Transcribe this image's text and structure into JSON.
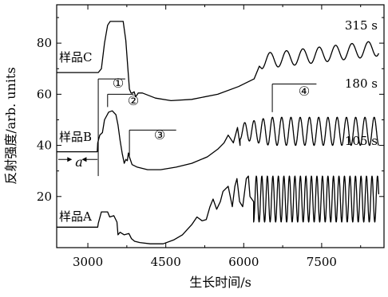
{
  "chart_data": {
    "type": "line",
    "xlabel": "生长时间/s",
    "ylabel": "反射强度/arb. units",
    "xlim": [
      2400,
      8700
    ],
    "ylim": [
      0,
      95
    ],
    "xticks": [
      3000,
      4500,
      6000,
      7500
    ],
    "xticks_minor": [
      3750,
      5250,
      6750,
      8250
    ],
    "yticks": [
      20,
      40,
      60,
      80
    ],
    "yticks_minor": [
      30,
      50,
      70,
      90
    ],
    "grid": false,
    "series": [
      {
        "name": "样品A",
        "period_label": "105 s",
        "points": [
          [
            2400,
            8
          ],
          [
            3050,
            8
          ],
          [
            3190,
            8
          ],
          [
            3200,
            9.5
          ],
          [
            3260,
            14
          ],
          [
            3380,
            14
          ],
          [
            3420,
            12
          ],
          [
            3500,
            12.5
          ],
          [
            3560,
            10
          ],
          [
            3580,
            5
          ],
          [
            3620,
            6
          ],
          [
            3700,
            5
          ],
          [
            3790,
            5.5
          ],
          [
            3840,
            3.5
          ],
          [
            3900,
            2.5
          ],
          [
            4000,
            2
          ],
          [
            4200,
            1.5
          ],
          [
            4450,
            1.5
          ],
          [
            4650,
            3
          ],
          [
            4820,
            5
          ],
          [
            5000,
            9
          ],
          [
            5100,
            12
          ],
          [
            5200,
            10.5
          ],
          [
            5280,
            11
          ],
          [
            5350,
            16
          ],
          [
            5410,
            19
          ],
          [
            5480,
            15
          ],
          [
            5550,
            18
          ],
          [
            5600,
            22
          ],
          [
            5700,
            24
          ],
          [
            5780,
            16
          ],
          [
            5830,
            24
          ],
          [
            5870,
            27
          ],
          [
            5920,
            18
          ],
          [
            5980,
            16
          ],
          [
            6050,
            27
          ],
          [
            6090,
            28
          ],
          [
            6120,
            20
          ],
          [
            6190,
            18
          ]
        ],
        "oscillation": {
          "x_start": 6190,
          "x_end": 8600,
          "period": 106,
          "y_min": 10,
          "y_max": 28
        }
      },
      {
        "name": "样品B",
        "period_label": "180 s",
        "points": [
          [
            2400,
            37.5
          ],
          [
            3050,
            37.5
          ],
          [
            3180,
            37.5
          ],
          [
            3190,
            41
          ],
          [
            3230,
            44
          ],
          [
            3280,
            45
          ],
          [
            3320,
            50
          ],
          [
            3400,
            53
          ],
          [
            3470,
            53.5
          ],
          [
            3540,
            52
          ],
          [
            3580,
            48
          ],
          [
            3620,
            42
          ],
          [
            3660,
            37
          ],
          [
            3700,
            33
          ],
          [
            3730,
            34.5
          ],
          [
            3760,
            34
          ],
          [
            3780,
            37
          ],
          [
            3800,
            35.5
          ],
          [
            3850,
            32.5
          ],
          [
            3950,
            31.5
          ],
          [
            4150,
            30.5
          ],
          [
            4400,
            30.5
          ],
          [
            4700,
            31.5
          ],
          [
            5000,
            33
          ],
          [
            5300,
            35.5
          ],
          [
            5500,
            38.5
          ],
          [
            5620,
            41
          ],
          [
            5700,
            44
          ],
          [
            5800,
            41
          ],
          [
            5880,
            47
          ],
          [
            5930,
            40
          ]
        ],
        "oscillation": {
          "x_start": 5930,
          "x_end": 8600,
          "period": 178,
          "y_min": 40,
          "y_max": 51,
          "amp_grow_to": 6500
        }
      },
      {
        "name": "样品C",
        "period_label": "315 s",
        "points": [
          [
            2400,
            68.5
          ],
          [
            3050,
            68.5
          ],
          [
            3200,
            68.5
          ],
          [
            3260,
            70
          ],
          [
            3320,
            80
          ],
          [
            3380,
            87
          ],
          [
            3430,
            88.5
          ],
          [
            3500,
            88.5
          ],
          [
            3640,
            88.5
          ],
          [
            3680,
            88.5
          ],
          [
            3730,
            81
          ],
          [
            3770,
            70
          ],
          [
            3800,
            62
          ],
          [
            3830,
            60.5
          ],
          [
            3860,
            60.5
          ],
          [
            3890,
            61
          ],
          [
            3920,
            59
          ],
          [
            3970,
            60.5
          ],
          [
            4050,
            60.5
          ],
          [
            4300,
            58.5
          ],
          [
            4600,
            57.5
          ],
          [
            5000,
            58
          ],
          [
            5500,
            60
          ],
          [
            5900,
            63
          ],
          [
            6200,
            66
          ],
          [
            6300,
            71
          ],
          [
            6350,
            70
          ]
        ],
        "oscillation": {
          "x_start": 6350,
          "x_end": 8600,
          "period": 315,
          "y_min": 70,
          "y_max": 76,
          "drift": 5
        }
      }
    ],
    "annotations": [
      {
        "id": "marker-1",
        "text": "①"
      },
      {
        "id": "marker-2",
        "text": "②"
      },
      {
        "id": "marker-3",
        "text": "③"
      },
      {
        "id": "marker-4",
        "text": "④"
      },
      {
        "id": "interval-a",
        "text": "a"
      }
    ]
  },
  "palette": {
    "line": "#000000",
    "background": "#ffffff"
  }
}
